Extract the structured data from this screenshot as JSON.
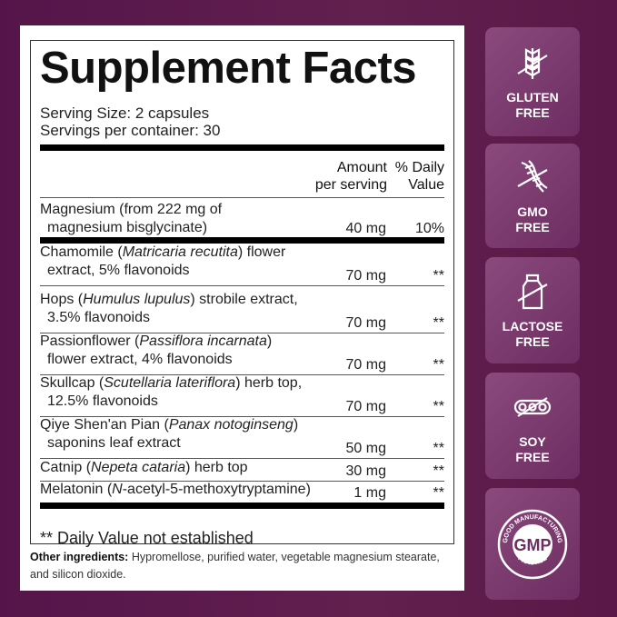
{
  "title": "Supplement Facts",
  "serving_size": "Serving Size: 2 capsules",
  "servings_per_container": "Servings per container: 30",
  "headers": {
    "amount_1": "Amount",
    "amount_2": "per serving",
    "dv_1": "% Daily",
    "dv_2": "Value"
  },
  "rows": [
    {
      "l1": [
        {
          "t": "Magnesium (from 222 mg of"
        }
      ],
      "l2": [
        {
          "t": "magnesium bisglycinate)"
        }
      ],
      "amount": "40 mg",
      "dv": "10%"
    },
    {
      "l1": [
        {
          "t": "Chamomile ("
        },
        {
          "t": "Matricaria recutita",
          "i": true
        },
        {
          "t": ") flower"
        }
      ],
      "l2": [
        {
          "t": "extract, 5% flavonoids"
        }
      ],
      "amount": "70 mg",
      "dv": "**"
    },
    {
      "l1": [
        {
          "t": "Hops ("
        },
        {
          "t": "Humulus lupulus",
          "i": true
        },
        {
          "t": ") strobile extract,"
        }
      ],
      "l2": [
        {
          "t": "3.5% flavonoids"
        }
      ],
      "amount": "70 mg",
      "dv": "**"
    },
    {
      "l1": [
        {
          "t": "Passionflower ("
        },
        {
          "t": "Passiflora incarnata",
          "i": true
        },
        {
          "t": ")"
        }
      ],
      "l2": [
        {
          "t": "flower extract, 4% flavonoids"
        }
      ],
      "amount": "70 mg",
      "dv": "**"
    },
    {
      "l1": [
        {
          "t": "Skullcap ("
        },
        {
          "t": "Scutellaria lateriflora",
          "i": true
        },
        {
          "t": ") herb top,"
        }
      ],
      "l2": [
        {
          "t": "12.5% flavonoids"
        }
      ],
      "amount": "70 mg",
      "dv": "**"
    },
    {
      "l1": [
        {
          "t": "Qiye Shen'an Pian ("
        },
        {
          "t": "Panax notoginseng",
          "i": true
        },
        {
          "t": ")"
        }
      ],
      "l2": [
        {
          "t": "saponins leaf extract"
        }
      ],
      "amount": "50 mg",
      "dv": "**"
    },
    {
      "l1": [
        {
          "t": "Catnip ("
        },
        {
          "t": "Nepeta cataria",
          "i": true
        },
        {
          "t": ") herb top"
        }
      ],
      "amount": "30 mg",
      "dv": "**"
    },
    {
      "l1": [
        {
          "t": "Melatonin ("
        },
        {
          "t": "N",
          "i": true
        },
        {
          "t": "-acetyl-5-methoxytryptamine)"
        }
      ],
      "amount": "1 mg",
      "dv": "**"
    }
  ],
  "footnote": "** Daily Value not established",
  "other_ingredients": {
    "label": "Other ingredients:",
    "text": " Hypromellose, purified water, vegetable magnesium stearate, and silicon dioxide."
  },
  "badges": [
    {
      "icon": "wheat-crossed-icon",
      "line1": "GLUTEN",
      "line2": "FREE"
    },
    {
      "icon": "dna-crossed-icon",
      "line1": "GMO",
      "line2": "FREE"
    },
    {
      "icon": "milk-bottle-crossed-icon",
      "line1": "LACTOSE",
      "line2": "FREE"
    },
    {
      "icon": "soybean-crossed-icon",
      "line1": "SOY",
      "line2": "FREE"
    },
    {
      "icon": "gmp-seal-icon",
      "seal_text": "GOOD MANUFACTURING PRACTICE",
      "seal_center": "GMP"
    }
  ],
  "colors": {
    "background": "#5b1848",
    "badge": "#7a3a6c",
    "panel": "#ffffff"
  }
}
